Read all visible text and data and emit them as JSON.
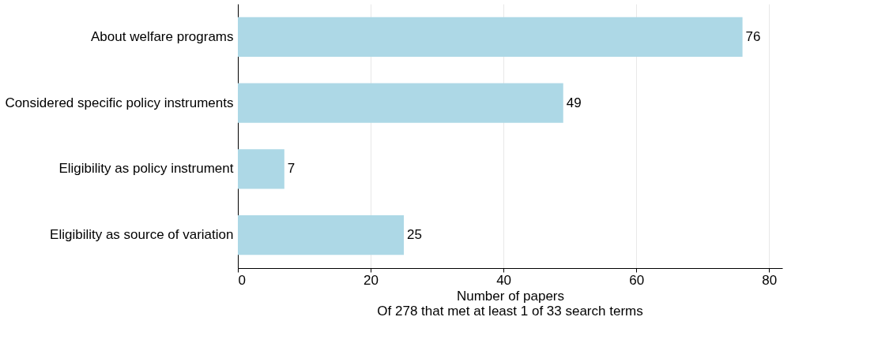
{
  "chart_data": {
    "type": "bar",
    "orientation": "horizontal",
    "categories": [
      "About welfare programs",
      "Considered specific policy instruments",
      "Eligibility as policy instrument",
      "Eligibility as source of variation"
    ],
    "values": [
      76,
      49,
      7,
      25
    ],
    "color": "#add8e6",
    "xlabel": "Number of papers",
    "annotations": [
      "Of 278 that met at least 1 of 33 search terms"
    ],
    "xlim": [
      0,
      82
    ],
    "xticks": [
      0,
      20,
      40,
      60,
      80
    ],
    "grid": "x",
    "data_labels": true
  }
}
